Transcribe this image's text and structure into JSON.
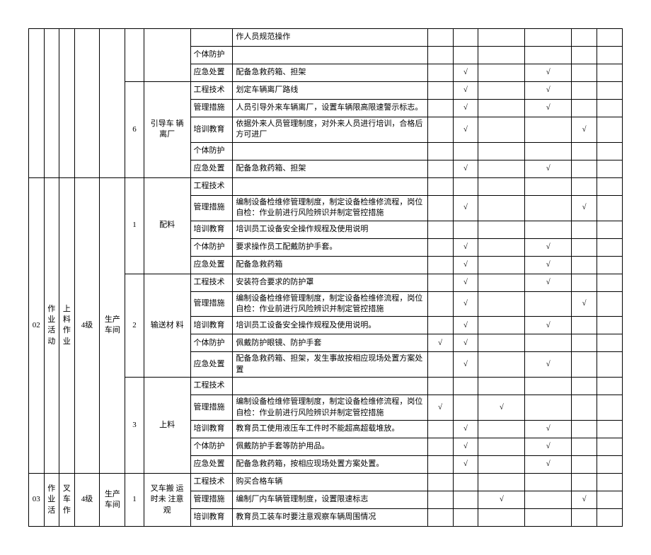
{
  "check": "√",
  "categories": [
    "工程技术",
    "管理措施",
    "培训教育",
    "个体防护",
    "应急处置"
  ],
  "rows": [
    {
      "cat": "",
      "desc": "作人员规范操作",
      "checks": [
        "",
        "",
        "",
        "",
        "",
        ""
      ]
    },
    {
      "cat": "个体防护",
      "desc": "",
      "checks": [
        "",
        "",
        "",
        "",
        "",
        ""
      ]
    },
    {
      "cat": "应急处置",
      "desc": "配备急救药箱、担架",
      "checks": [
        "",
        "√",
        "",
        "√",
        "",
        ""
      ]
    },
    {
      "cat": "工程技术",
      "desc": "划定车辆离厂路线",
      "checks": [
        "",
        "√",
        "",
        "√",
        "",
        ""
      ]
    },
    {
      "cat": "管理措施",
      "desc": "人员引导外来车辆离厂，设置车辆限高限速警示标志。",
      "checks": [
        "",
        "√",
        "",
        "√",
        "",
        ""
      ]
    },
    {
      "cat": "培训教育",
      "desc": "依据外来人员管理制度，对外来人员进行培训，合格后方可进厂",
      "checks": [
        "",
        "√",
        "",
        "",
        "√",
        ""
      ]
    },
    {
      "cat": "个体防护",
      "desc": "",
      "checks": [
        "",
        "",
        "",
        "",
        "",
        ""
      ]
    },
    {
      "cat": "应急处置",
      "desc": "配备急救药箱、担架",
      "checks": [
        "",
        "√",
        "",
        "√",
        "",
        ""
      ]
    },
    {
      "cat": "工程技术",
      "desc": "",
      "checks": [
        "",
        "",
        "",
        "",
        "",
        ""
      ]
    },
    {
      "cat": "管理措施",
      "desc": "编制设备检维修管理制度，制定设备检维修流程，岗位自检：作业前进行风险辨识并制定管控措施",
      "checks": [
        "",
        "√",
        "",
        "",
        "√",
        ""
      ]
    },
    {
      "cat": "培训教育",
      "desc": "培训员工设备安全操作规程及使用说明",
      "checks": [
        "",
        "",
        "",
        "",
        "",
        ""
      ]
    },
    {
      "cat": "个体防护",
      "desc": "要求操作员工配戴防护手套。",
      "checks": [
        "",
        "√",
        "",
        "√",
        "",
        ""
      ]
    },
    {
      "cat": "应急处置",
      "desc": "配备急救药箱",
      "checks": [
        "",
        "√",
        "",
        "√",
        "",
        ""
      ]
    },
    {
      "cat": "工程技术",
      "desc": "安装符合要求的防护罩",
      "checks": [
        "",
        "√",
        "",
        "√",
        "",
        ""
      ]
    },
    {
      "cat": "管理措施",
      "desc": "编制设备检维修管理制度，制定设备检维修流程，岗位自检：作业前进行风险辨识并制定管控措施",
      "checks": [
        "",
        "√",
        "",
        "",
        "√",
        ""
      ]
    },
    {
      "cat": "培训教育",
      "desc": "培训员工设备安全操作规程及使用说明。",
      "checks": [
        "",
        "√",
        "",
        "√",
        "",
        ""
      ]
    },
    {
      "cat": "个体防护",
      "desc": "佩戴防护眼镜、防护手套",
      "checks": [
        "√",
        "√",
        "",
        "",
        "",
        ""
      ]
    },
    {
      "cat": "应急处置",
      "desc": "配备急救药箱、担架，发生事故按相应现场处置方案处置",
      "checks": [
        "",
        "√",
        "",
        "√",
        "",
        ""
      ]
    },
    {
      "cat": "工程技术",
      "desc": "",
      "checks": [
        "",
        "",
        "",
        "",
        "",
        ""
      ]
    },
    {
      "cat": "管理措施",
      "desc": "编制设备检维修管理制度，制定设备检维修流程，岗位自检：作业前进行风险辨识并制定管控措施",
      "checks": [
        "√",
        "",
        "√",
        "",
        "",
        ""
      ]
    },
    {
      "cat": "培训教育",
      "desc": "教育员工使用液压车工件时不能超高超载堆放。",
      "checks": [
        "",
        "√",
        "",
        "√",
        "",
        ""
      ]
    },
    {
      "cat": "个体防护",
      "desc": "佩戴防护手套等防护用品。",
      "checks": [
        "",
        "√",
        "",
        "√",
        "",
        ""
      ]
    },
    {
      "cat": "应急处置",
      "desc": "配备急救药箱，按相应现场处置方案处置。",
      "checks": [
        "",
        "√",
        "",
        "√",
        "",
        ""
      ]
    },
    {
      "cat": "工程技术",
      "desc": "购买合格车辆",
      "checks": [
        "",
        "",
        "",
        "",
        "",
        ""
      ]
    },
    {
      "cat": "管理措施",
      "desc": "编制厂内车辆管理制度，设置限速标志",
      "checks": [
        "",
        "",
        "√",
        "",
        "√",
        ""
      ]
    },
    {
      "cat": "培训教育",
      "desc": "教育员工装车时要注意观察车辆周围情况",
      "checks": [
        "",
        "",
        "",
        "",
        "",
        ""
      ]
    }
  ],
  "groups": {
    "g6": {
      "num": "6",
      "label": "引导车 辆离厂"
    },
    "g02": {
      "id": "02",
      "act": "作业活动",
      "job": "上料作业",
      "level": "4级",
      "dept": "生产车间"
    },
    "sub1": {
      "num": "1",
      "label": "配料"
    },
    "sub2": {
      "num": "2",
      "label": "输送材 料"
    },
    "sub3": {
      "num": "3",
      "label": "上料"
    },
    "g03": {
      "id": "03",
      "act": "作业活",
      "job": "叉车作",
      "level": "4级",
      "dept": "生产车间"
    },
    "sub03_1": {
      "num": "1",
      "label": "叉车搬 运时未 注意 观"
    }
  }
}
